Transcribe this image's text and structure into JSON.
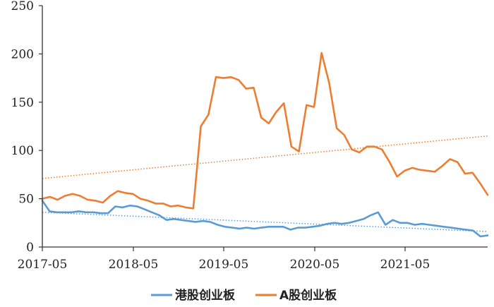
{
  "chart_data": {
    "type": "line",
    "x_tick_labels": [
      "2017-05",
      "2018-05",
      "2019-05",
      "2020-05",
      "2021-05"
    ],
    "y_ticks": [
      0,
      50,
      100,
      150,
      200,
      250
    ],
    "ylim": [
      0,
      250
    ],
    "grid": false,
    "legend_position": "bottom",
    "series": [
      {
        "name": "港股创业板",
        "color": "#5B9BD5",
        "values": [
          48,
          37,
          36,
          36,
          36,
          37,
          36,
          36,
          35,
          35,
          42,
          41,
          43,
          42,
          39,
          36,
          33,
          28,
          29,
          28,
          27,
          26,
          27,
          26,
          23,
          21,
          20,
          19,
          20,
          19,
          20,
          21,
          21,
          21,
          18,
          20,
          20,
          21,
          22,
          24,
          25,
          24,
          25,
          27,
          29,
          33,
          36,
          23,
          28,
          25,
          25,
          23,
          24,
          23,
          22,
          21,
          20,
          19,
          18,
          17,
          11,
          12
        ]
      },
      {
        "name": "A股创业板",
        "color": "#ED7D31",
        "values": [
          50,
          52,
          49,
          53,
          55,
          53,
          49,
          48,
          46,
          53,
          58,
          56,
          55,
          50,
          48,
          45,
          45,
          42,
          43,
          41,
          40,
          125,
          137,
          176,
          175,
          176,
          173,
          164,
          165,
          134,
          128,
          140,
          149,
          104,
          99,
          147,
          145,
          201,
          170,
          123,
          116,
          101,
          98,
          104,
          104,
          101,
          88,
          73,
          79,
          82,
          80,
          79,
          78,
          84,
          91,
          88,
          76,
          77,
          66,
          54
        ]
      }
    ],
    "trendlines": [
      {
        "series": "港股创业板",
        "color": "#5B9BD5",
        "start": 36,
        "end": 16
      },
      {
        "series": "A股创业板",
        "color": "#ED7D31",
        "start": 71,
        "end": 115
      }
    ]
  }
}
